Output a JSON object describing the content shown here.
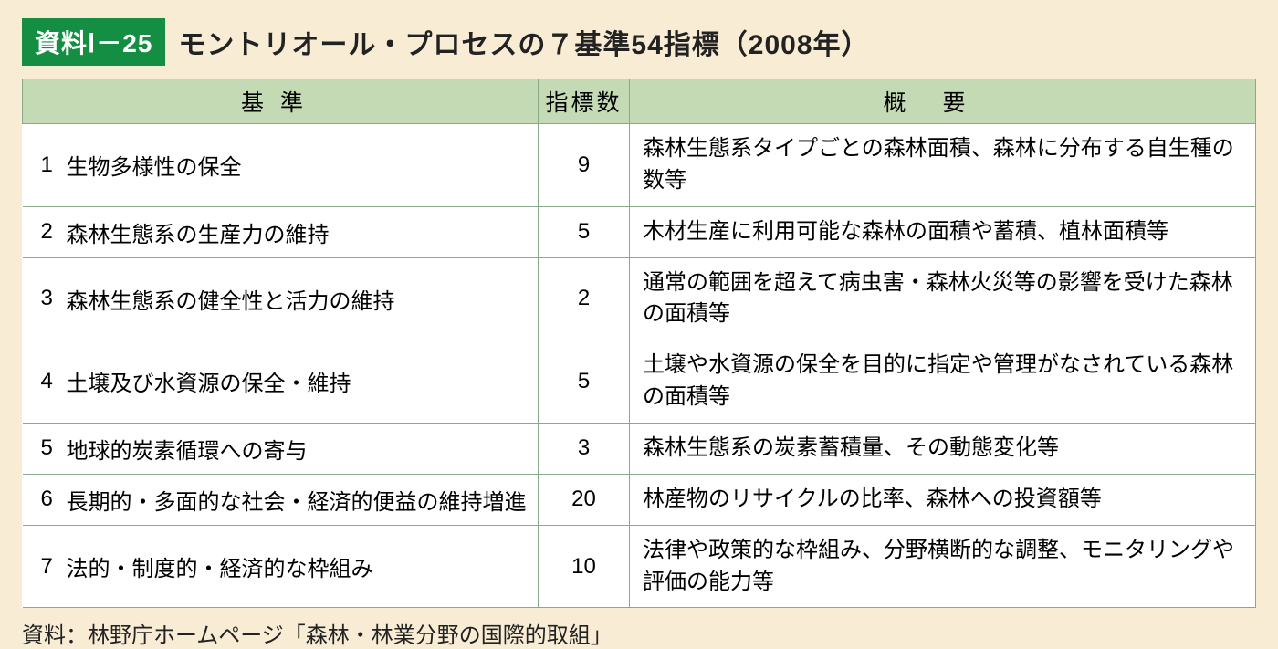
{
  "badge_label": "資料Ⅰ－25",
  "title": "モントリオール・プロセスの７基準54指標（2008年）",
  "table": {
    "header_bg": "#c3dab4",
    "border_color": "#8aa88a",
    "page_bg": "#f8ecd5",
    "badge_bg": "#148e42",
    "columns": {
      "criteria": "基準",
      "count": "指標数",
      "summary": "概要"
    },
    "rows": [
      {
        "num": "1",
        "criteria": "生物多様性の保全",
        "count": "9",
        "summary": "森林生態系タイプごとの森林面積、森林に分布する自生種の数等"
      },
      {
        "num": "2",
        "criteria": "森林生態系の生産力の維持",
        "count": "5",
        "summary": "木材生産に利用可能な森林の面積や蓄積、植林面積等"
      },
      {
        "num": "3",
        "criteria": "森林生態系の健全性と活力の維持",
        "count": "2",
        "summary": "通常の範囲を超えて病虫害・森林火災等の影響を受けた森林の面積等"
      },
      {
        "num": "4",
        "criteria": "土壌及び水資源の保全・維持",
        "count": "5",
        "summary": "土壌や水資源の保全を目的に指定や管理がなされている森林の面積等"
      },
      {
        "num": "5",
        "criteria": "地球的炭素循環への寄与",
        "count": "3",
        "summary": "森林生態系の炭素蓄積量、その動態変化等"
      },
      {
        "num": "6",
        "criteria": "長期的・多面的な社会・経済的便益の維持増進",
        "count": "20",
        "summary": "林産物のリサイクルの比率、森林への投資額等"
      },
      {
        "num": "7",
        "criteria": "法的・制度的・経済的な枠組み",
        "count": "10",
        "summary": "法律や政策的な枠組み、分野横断的な調整、モニタリングや評価の能力等"
      }
    ]
  },
  "source_note": "資料：林野庁ホームページ「森林・林業分野の国際的取組」"
}
